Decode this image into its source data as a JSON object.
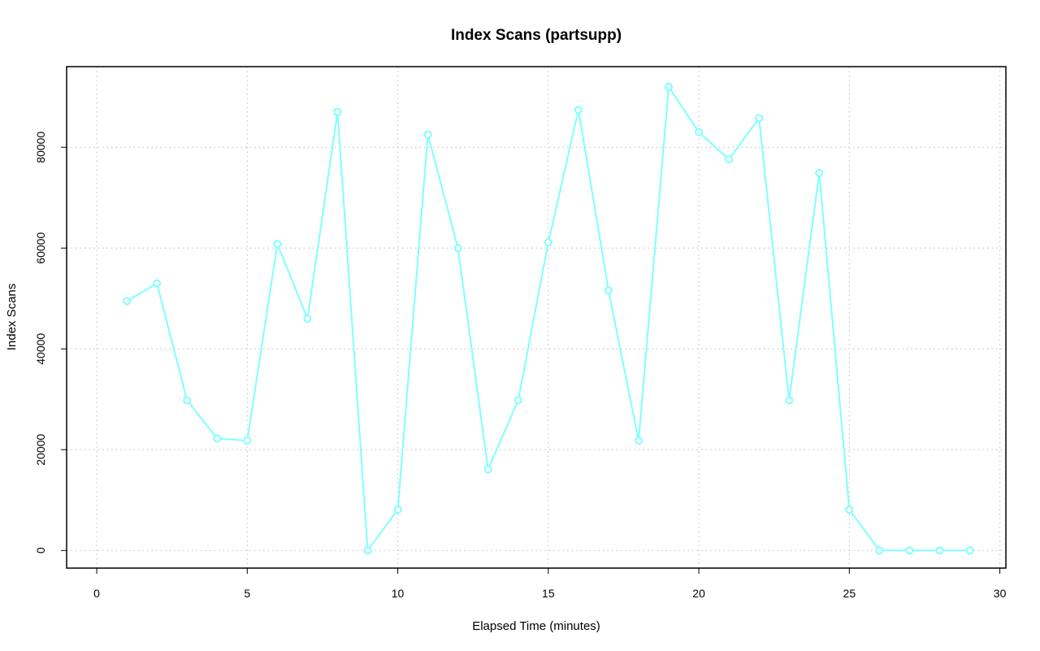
{
  "chart_data": {
    "type": "line",
    "title": "Index Scans (partsupp)",
    "xlabel": "Elapsed Time (minutes)",
    "ylabel": "Index Scans",
    "xlim": [
      -1,
      30.2
    ],
    "ylim": [
      -3500,
      96000
    ],
    "x_ticks": [
      0,
      5,
      10,
      15,
      20,
      25,
      30
    ],
    "y_ticks": [
      0,
      20000,
      40000,
      60000,
      80000
    ],
    "grid": true,
    "series": [
      {
        "color": "#80ffff",
        "x": [
          1,
          2,
          3,
          4,
          5,
          6,
          7,
          8,
          9,
          10,
          11,
          12,
          13,
          14,
          15,
          16,
          17,
          18,
          19,
          20,
          21,
          22,
          23,
          24,
          25,
          26,
          27,
          28,
          29
        ],
        "y": [
          49500,
          53000,
          29800,
          22200,
          21800,
          60800,
          46000,
          87000,
          0,
          8100,
          82500,
          60000,
          16100,
          29800,
          61100,
          87400,
          51600,
          21800,
          92000,
          83000,
          77600,
          85800,
          29800,
          74900,
          8100,
          0,
          0,
          0,
          0
        ]
      }
    ]
  }
}
